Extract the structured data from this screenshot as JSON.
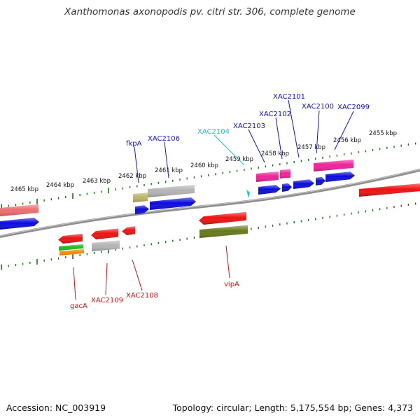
{
  "title": "Xanthomonas axonopodis pv. citri str. 306, complete genome",
  "footer": {
    "accession": "Accession: NC_003919",
    "stats": "Topology: circular; Length: 5,175,554 bp; Genes: 4,373"
  },
  "ticks": {
    "upper": [
      "2455 kbp",
      "2456 kbp",
      "2457 kbp",
      "2458 kbp",
      "2459 kbp",
      "2460 kbp",
      "2461 kbp",
      "2462 kbp",
      "2463 kbp",
      "2464 kbp",
      "2465 kbp"
    ]
  },
  "colors": {
    "red": "#ee1111",
    "blue": "#0a0adf",
    "magenta": "#ee2299",
    "gray": "#b4b4b4",
    "olive": "#667a18",
    "khaki": "#bcb46a",
    "salmon": "#ee6e6e",
    "green": "#22bb22",
    "orange": "#ff8800",
    "cyan": "#11cccc",
    "axis": "#888888",
    "tick": "#117711"
  },
  "gene_labels": [
    {
      "name": "XAC2101",
      "color": "#1111cc"
    },
    {
      "name": "XAC2100",
      "color": "#1111cc"
    },
    {
      "name": "XAC2099",
      "color": "#1111cc"
    },
    {
      "name": "XAC2102",
      "color": "#1111cc"
    },
    {
      "name": "XAC2103",
      "color": "#1111cc"
    },
    {
      "name": "XAC2104",
      "color": "#22bbdd"
    },
    {
      "name": "fkpA",
      "color": "#1111cc"
    },
    {
      "name": "XAC2106",
      "color": "#1111cc"
    },
    {
      "name": "vipA",
      "color": "#cc1111"
    },
    {
      "name": "gacA",
      "color": "#cc1111"
    },
    {
      "name": "XAC2109",
      "color": "#cc1111"
    },
    {
      "name": "XAC2108",
      "color": "#cc1111"
    }
  ]
}
